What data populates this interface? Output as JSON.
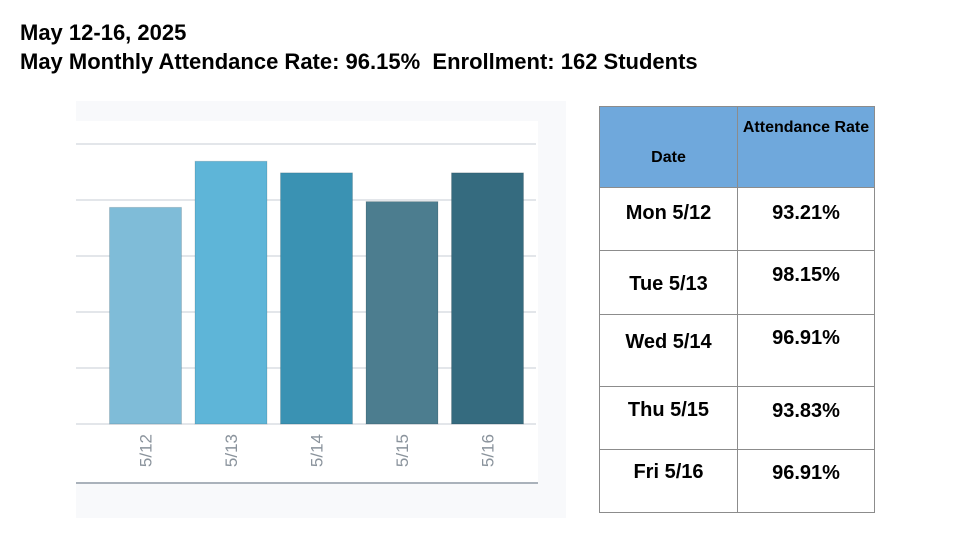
{
  "header": {
    "line1": "May 12-16, 2025",
    "line2": "May Monthly Attendance Rate: 96.15%  Enrollment: 162 Students"
  },
  "chart_data": {
    "type": "bar",
    "categories": [
      "5/12",
      "5/13",
      "5/14",
      "5/15",
      "5/16"
    ],
    "values": [
      93.21,
      98.15,
      96.91,
      93.83,
      96.91
    ],
    "bar_colors": [
      "#7fbcd8",
      "#5eb5d8",
      "#3a92b3",
      "#4c7d8f",
      "#356b7f"
    ],
    "title": "",
    "xlabel": "",
    "ylabel": "",
    "ylim": [
      70,
      100
    ],
    "grid": true,
    "legend": "none"
  },
  "table": {
    "headers": {
      "date": "Date",
      "rate_line1": "Attendance",
      "rate_line2": "Rate"
    },
    "rows": [
      {
        "date": "Mon 5/12",
        "rate": "93.21%"
      },
      {
        "date": "Tue 5/13",
        "rate": "98.15%"
      },
      {
        "date": "Wed 5/14",
        "rate": "96.91%"
      },
      {
        "date": "Thu 5/15",
        "rate": "93.83%"
      },
      {
        "date": "Fri 5/16",
        "rate": "96.91%"
      }
    ],
    "header_color": "#6fa8dc"
  }
}
